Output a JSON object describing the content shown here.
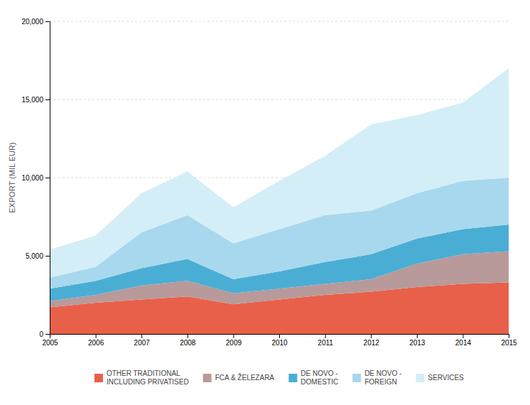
{
  "chart_data": {
    "type": "area",
    "stacked": true,
    "x": [
      2005,
      2006,
      2007,
      2008,
      2009,
      2010,
      2011,
      2012,
      2013,
      2014,
      2015
    ],
    "series": [
      {
        "name": "OTHER TRADITIONAL\nINCLUDING PRIVATISED",
        "color": "#e8604a",
        "values": [
          1700,
          2000,
          2200,
          2400,
          1900,
          2200,
          2500,
          2700,
          3000,
          3200,
          3300
        ]
      },
      {
        "name": "FCA & ŽELEZARA",
        "color": "#b89a9a",
        "values": [
          400,
          500,
          900,
          1000,
          700,
          700,
          700,
          800,
          1500,
          1900,
          2000
        ]
      },
      {
        "name": "DE NOVO -\nDOMESTIC",
        "color": "#4aaed4",
        "values": [
          800,
          900,
          1100,
          1400,
          900,
          1100,
          1400,
          1600,
          1600,
          1600,
          1700
        ]
      },
      {
        "name": "DE NOVO -\nFOREIGN",
        "color": "#a8d8ed",
        "values": [
          700,
          900,
          2300,
          2800,
          2300,
          2700,
          3000,
          2800,
          2900,
          3100,
          3000
        ]
      },
      {
        "name": "SERVICES",
        "color": "#d4eef8",
        "values": [
          1800,
          2000,
          2500,
          2800,
          2300,
          3100,
          3800,
          5500,
          5000,
          5000,
          7000
        ]
      }
    ],
    "y_label": "EXPORT (MIL EUR)",
    "xlim": [
      2005,
      2015
    ],
    "xticks": [
      2005,
      2006,
      2007,
      2008,
      2009,
      2010,
      2011,
      2012,
      2013,
      2014,
      2015
    ],
    "ylim": [
      0,
      20000
    ],
    "yticks": [
      0,
      {
        "value": 5000,
        "label": "5,000"
      },
      {
        "value": 10000,
        "label": "10,000"
      },
      {
        "value": 15000,
        "label": "15,000"
      },
      {
        "value": 20000,
        "label": "20,000"
      }
    ],
    "grid": true,
    "legend": "bottom"
  }
}
